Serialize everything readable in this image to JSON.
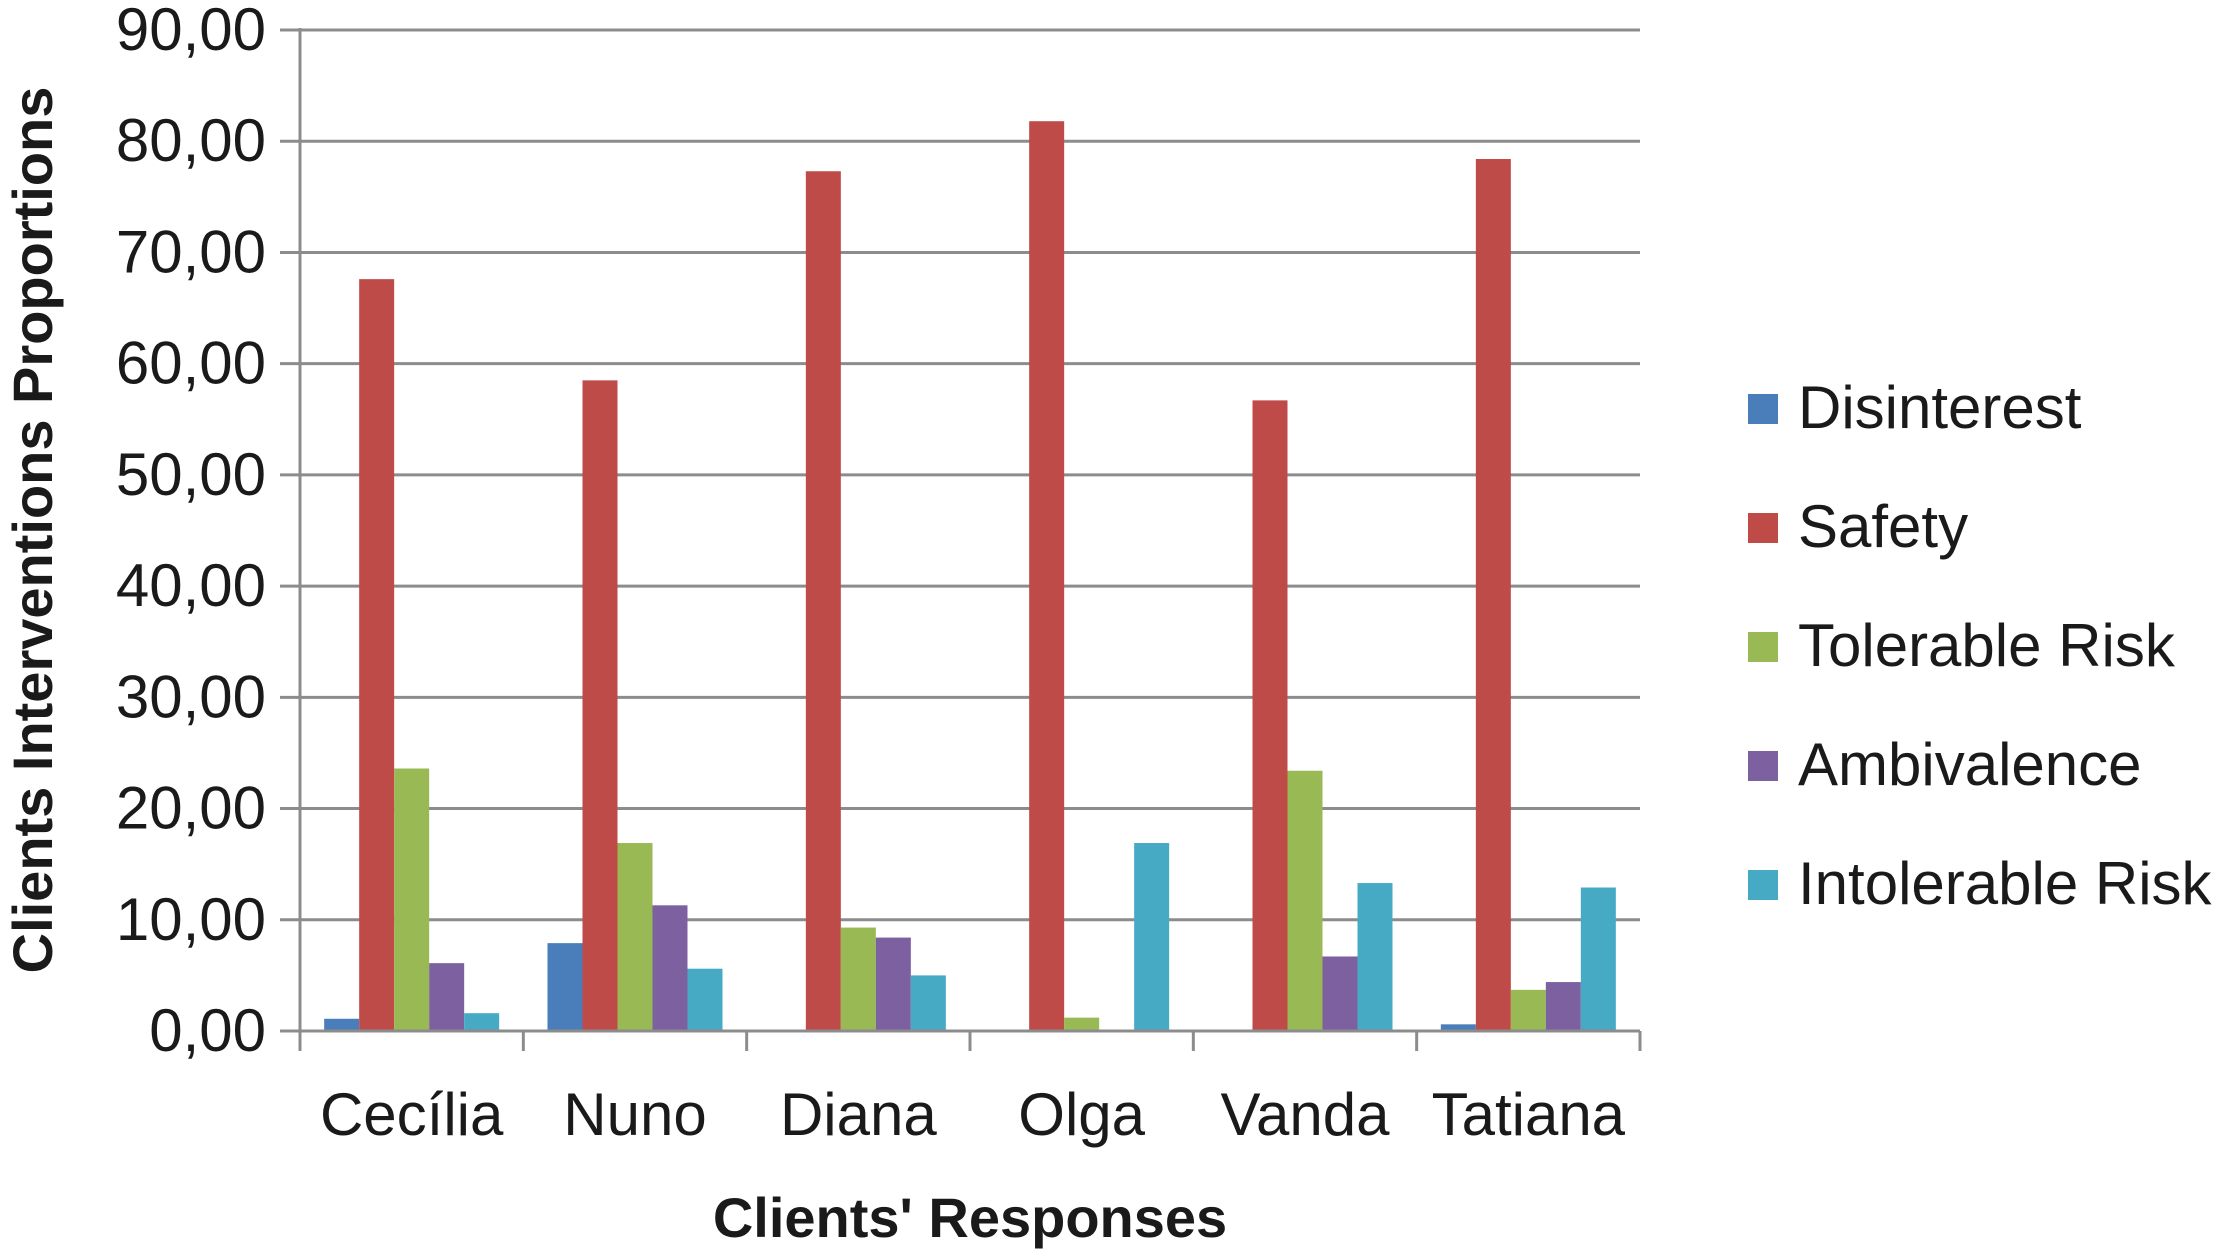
{
  "chart_data": {
    "type": "bar",
    "title": "",
    "xlabel": "Clients' Responses",
    "ylabel": "Clients Interventions Proportions",
    "ylim": [
      0,
      90
    ],
    "y_ticks": [
      "0,00",
      "10,00",
      "20,00",
      "30,00",
      "40,00",
      "50,00",
      "60,00",
      "70,00",
      "80,00",
      "90,00"
    ],
    "grid": true,
    "legend_position": "right",
    "categories": [
      "Cecília",
      "Nuno",
      "Diana",
      "Olga",
      "Vanda",
      "Tatiana"
    ],
    "series": [
      {
        "name": "Disinterest",
        "color": "#4a7ebb",
        "values": [
          1.1,
          7.9,
          0,
          0,
          0,
          0.6
        ]
      },
      {
        "name": "Safety",
        "color": "#be4b48",
        "values": [
          67.6,
          58.5,
          77.3,
          81.8,
          56.7,
          78.4
        ]
      },
      {
        "name": "Tolerable Risk",
        "color": "#98b954",
        "values": [
          23.6,
          16.9,
          9.3,
          1.2,
          23.4,
          3.7
        ]
      },
      {
        "name": "Ambivalence",
        "color": "#7d60a0",
        "values": [
          6.1,
          11.3,
          8.4,
          0,
          6.7,
          4.4
        ]
      },
      {
        "name": "Intolerable Risk",
        "color": "#46aac5",
        "values": [
          1.6,
          5.6,
          5.0,
          16.9,
          13.3,
          12.9
        ]
      }
    ]
  }
}
